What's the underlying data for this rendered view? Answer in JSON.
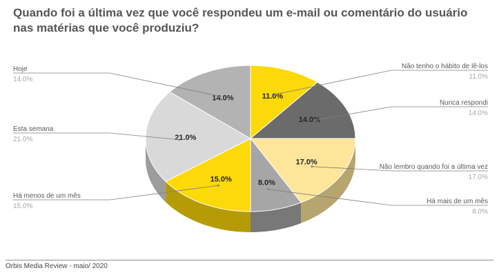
{
  "title": "Quando foi a última vez que você respondeu um e-mail ou comentário do usuário nas matérias que você produziu?",
  "source": "Orbis Media Review - maio/ 2020",
  "colors": {
    "yellow": "#fcd908",
    "dark_gray": "#6b6b6b",
    "light_yellow": "#fde59a",
    "mid_gray": "#a6a6a6",
    "light_gray": "#d9d9d9",
    "gray": "#b3b3b3"
  },
  "chart_data": {
    "type": "pie",
    "title": "Quando foi a última vez que você respondeu um e-mail ou comentário do usuário nas matérias que você produziu?",
    "slices": [
      {
        "label": "Não tenho o hábito de lê-los",
        "value": 11.0,
        "pct_text": "11.0%",
        "value_text": "11.0%",
        "color": "#fcd908"
      },
      {
        "label": "Nunca respondi",
        "value": 14.0,
        "pct_text": "14.0%",
        "value_text": "14.0%",
        "color": "#6b6b6b"
      },
      {
        "label": "Não lembro quando foi a última vez",
        "value": 17.0,
        "pct_text": "17.0%",
        "value_text": "17.0%",
        "color": "#fde59a"
      },
      {
        "label": "Há mais de um mês",
        "value": 8.0,
        "pct_text": "8.0%",
        "value_text": "8.0%",
        "color": "#a6a6a6"
      },
      {
        "label": "Há menos de um mês",
        "value": 15.0,
        "pct_text": "15.0%",
        "value_text": "15.0%",
        "color": "#fcd908"
      },
      {
        "label": "Esta semana",
        "value": 21.0,
        "pct_text": "21.0%",
        "value_text": "21.0%",
        "color": "#d9d9d9"
      },
      {
        "label": "Hoje",
        "value": 14.0,
        "pct_text": "14.0%",
        "value_text": "14.0%",
        "color": "#b3b3b3"
      }
    ]
  }
}
